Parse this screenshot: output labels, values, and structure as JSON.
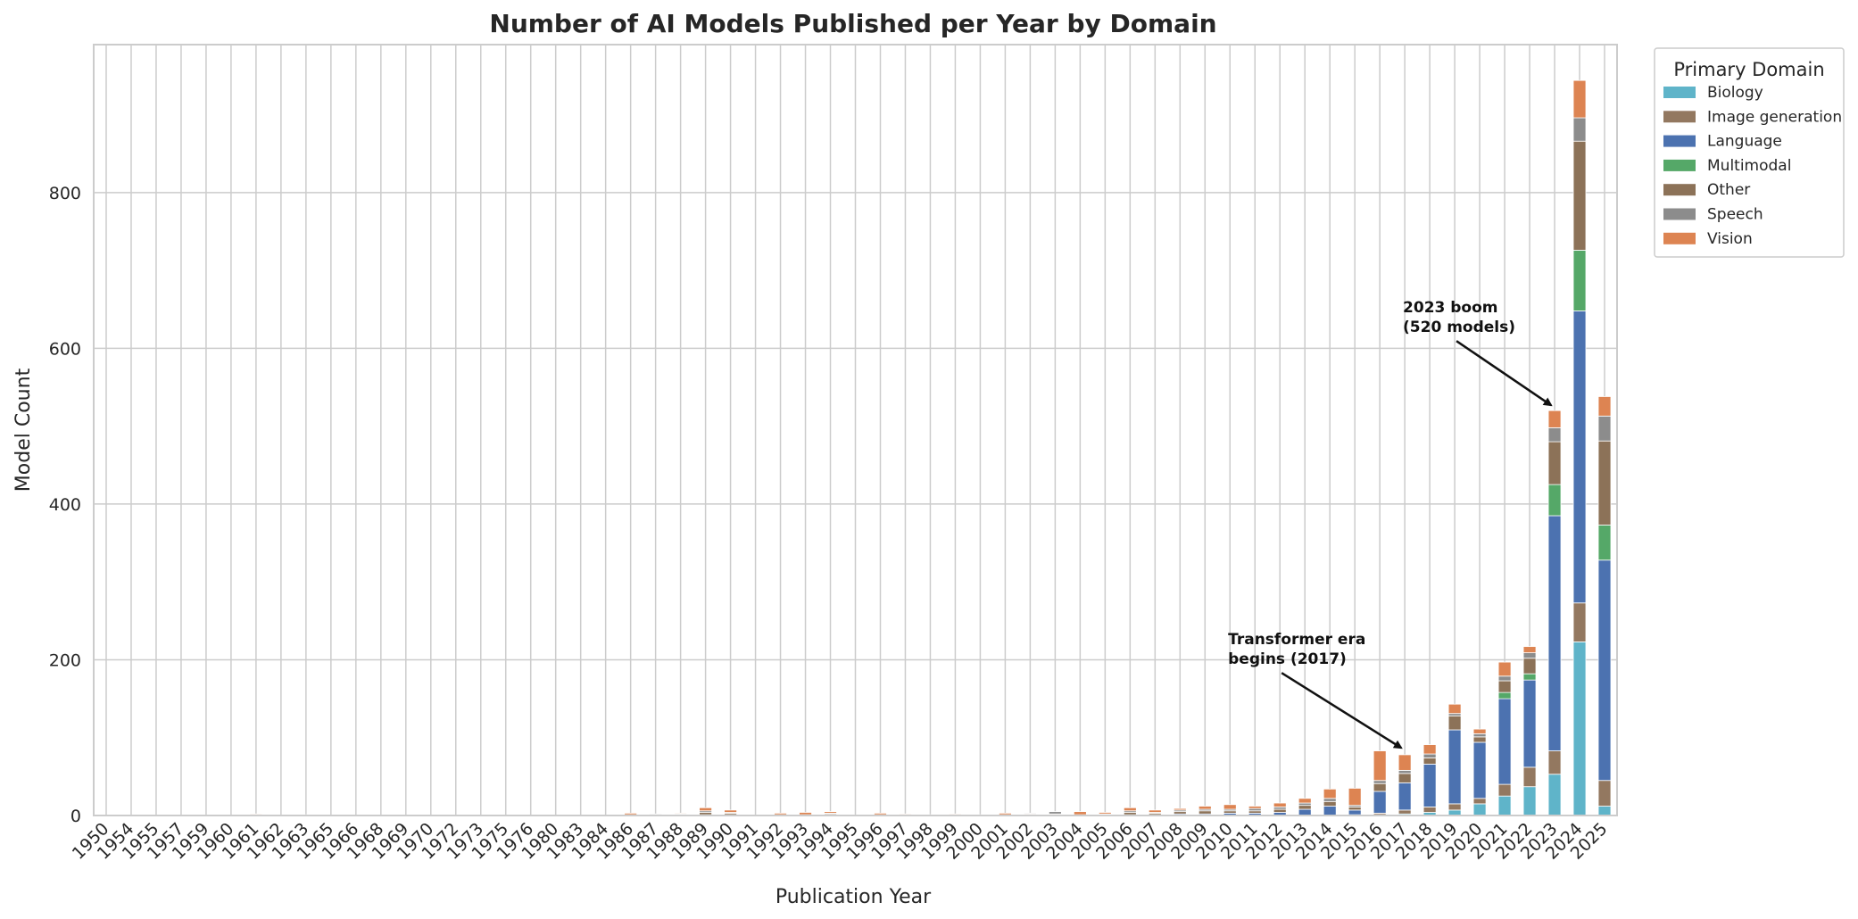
{
  "chart_data": {
    "type": "bar",
    "stacked": true,
    "title": "Number of AI Models Published per Year by Domain",
    "xlabel": "Publication Year",
    "ylabel": "Model Count",
    "ylim": [
      0,
      990
    ],
    "yticks": [
      0,
      200,
      400,
      600,
      800
    ],
    "grid": true,
    "legend": {
      "title": "Primary Domain",
      "placement": "outside-right"
    },
    "categories": [
      "1950",
      "1954",
      "1955",
      "1957",
      "1959",
      "1960",
      "1961",
      "1962",
      "1963",
      "1965",
      "1966",
      "1968",
      "1969",
      "1970",
      "1972",
      "1973",
      "1975",
      "1976",
      "1980",
      "1983",
      "1984",
      "1986",
      "1987",
      "1988",
      "1989",
      "1990",
      "1991",
      "1992",
      "1993",
      "1994",
      "1995",
      "1996",
      "1997",
      "1998",
      "1999",
      "2000",
      "2001",
      "2002",
      "2003",
      "2004",
      "2005",
      "2006",
      "2007",
      "2008",
      "2009",
      "2010",
      "2011",
      "2012",
      "2013",
      "2014",
      "2015",
      "2016",
      "2017",
      "2018",
      "2019",
      "2020",
      "2021",
      "2022",
      "2023",
      "2024",
      "2025"
    ],
    "series": [
      {
        "name": "Biology",
        "color": "#5fb4c9",
        "values": [
          0,
          0,
          0,
          0,
          0,
          0,
          0,
          0,
          0,
          0,
          0,
          0,
          0,
          0,
          0,
          0,
          0,
          0,
          0,
          0,
          0,
          0,
          0,
          0,
          0,
          0,
          0,
          0,
          0,
          0,
          0,
          0,
          0,
          0,
          0,
          0,
          0,
          0,
          0,
          0,
          0,
          0,
          0,
          0,
          0,
          0,
          0,
          0,
          0,
          0,
          1,
          1,
          2,
          4,
          7,
          15,
          25,
          37,
          53,
          223,
          12
        ]
      },
      {
        "name": "Image generation",
        "color": "#937860",
        "values": [
          0,
          0,
          0,
          0,
          0,
          0,
          0,
          0,
          0,
          0,
          0,
          0,
          0,
          0,
          0,
          0,
          0,
          0,
          0,
          0,
          0,
          0,
          0,
          0,
          0,
          0,
          0,
          0,
          0,
          0,
          0,
          0,
          0,
          0,
          0,
          0,
          0,
          0,
          0,
          0,
          0,
          0,
          0,
          0,
          0,
          0,
          0,
          0,
          0,
          0,
          0,
          2,
          5,
          7,
          8,
          7,
          15,
          25,
          30,
          50,
          33
        ]
      },
      {
        "name": "Language",
        "color": "#4c72b0",
        "values": [
          0,
          0,
          0,
          0,
          0,
          0,
          0,
          0,
          0,
          0,
          0,
          0,
          0,
          0,
          0,
          0,
          0,
          0,
          0,
          0,
          0,
          0,
          0,
          0,
          1,
          1,
          0,
          0,
          0,
          0,
          0,
          0,
          0,
          0,
          0,
          0,
          0,
          1,
          1,
          0,
          0,
          1,
          1,
          2,
          2,
          3,
          3,
          4,
          8,
          12,
          6,
          28,
          35,
          55,
          95,
          72,
          110,
          112,
          302,
          375,
          283
        ]
      },
      {
        "name": "Multimodal",
        "color": "#55a868",
        "values": [
          0,
          0,
          0,
          0,
          0,
          0,
          0,
          0,
          0,
          0,
          0,
          0,
          0,
          0,
          0,
          0,
          0,
          0,
          0,
          0,
          0,
          0,
          0,
          0,
          0,
          0,
          0,
          0,
          0,
          0,
          0,
          0,
          0,
          0,
          0,
          0,
          0,
          0,
          0,
          0,
          0,
          0,
          0,
          0,
          0,
          0,
          0,
          0,
          0,
          0,
          0,
          0,
          0,
          0,
          0,
          0,
          8,
          8,
          40,
          78,
          45
        ]
      },
      {
        "name": "Other",
        "color": "#8c7258",
        "values": [
          0,
          0,
          0,
          0,
          0,
          0,
          1,
          0,
          0,
          0,
          0,
          0,
          0,
          0,
          0,
          0,
          0,
          0,
          0,
          0,
          0,
          1,
          1,
          1,
          3,
          2,
          0,
          1,
          1,
          2,
          0,
          1,
          1,
          0,
          1,
          0,
          1,
          1,
          1,
          1,
          1,
          3,
          2,
          3,
          4,
          3,
          3,
          4,
          5,
          6,
          4,
          10,
          12,
          8,
          18,
          7,
          15,
          20,
          55,
          140,
          108
        ]
      },
      {
        "name": "Speech",
        "color": "#8c8c8c",
        "values": [
          0,
          0,
          0,
          0,
          0,
          0,
          0,
          0,
          0,
          0,
          0,
          0,
          0,
          0,
          0,
          0,
          0,
          0,
          0,
          0,
          0,
          0,
          1,
          1,
          2,
          1,
          0,
          0,
          0,
          1,
          0,
          0,
          0,
          0,
          0,
          0,
          0,
          1,
          3,
          0,
          1,
          2,
          1,
          2,
          2,
          2,
          3,
          3,
          3,
          4,
          2,
          4,
          4,
          5,
          3,
          4,
          6,
          7,
          18,
          30,
          32
        ]
      },
      {
        "name": "Vision",
        "color": "#dd8452",
        "values": [
          0,
          0,
          0,
          0,
          0,
          0,
          1,
          0,
          1,
          0,
          0,
          0,
          0,
          0,
          0,
          0,
          0,
          0,
          0,
          0,
          0,
          2,
          0,
          1,
          4,
          3,
          0,
          2,
          3,
          2,
          0,
          2,
          1,
          1,
          1,
          1,
          2,
          0,
          0,
          4,
          2,
          4,
          3,
          2,
          4,
          6,
          3,
          5,
          6,
          12,
          22,
          38,
          20,
          12,
          12,
          6,
          18,
          8,
          22,
          48,
          25
        ]
      }
    ],
    "annotations": [
      {
        "text": [
          "Transformer era",
          "begins (2017)"
        ],
        "target_category": "2017",
        "target_value": 80
      },
      {
        "text": [
          "2023 boom",
          "(520 models)"
        ],
        "target_category": "2023",
        "target_value": 520
      }
    ]
  }
}
